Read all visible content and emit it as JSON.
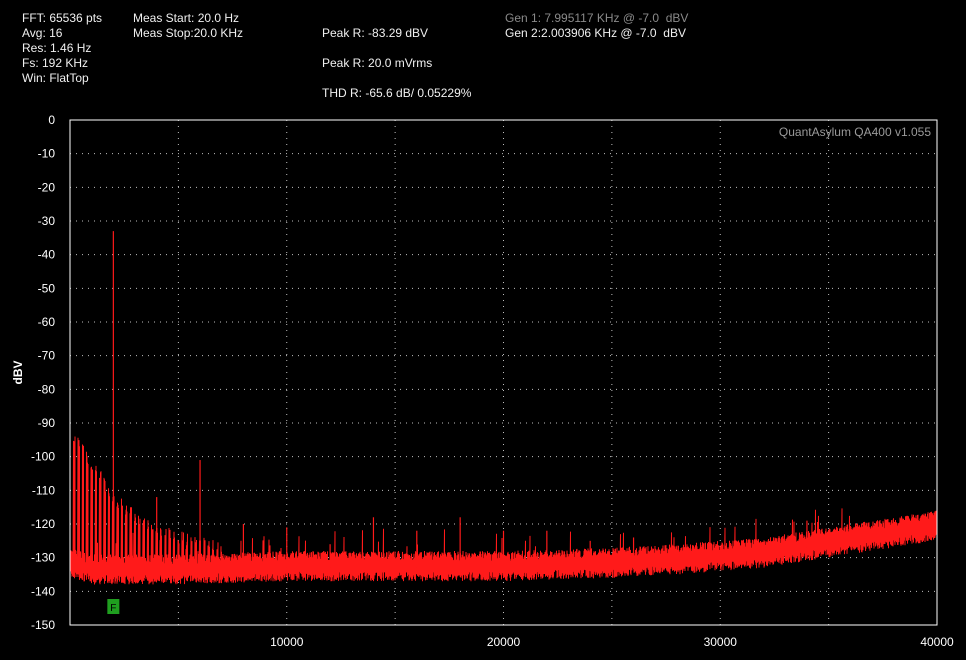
{
  "header": {
    "fft": "FFT: 65536 pts",
    "avg": "Avg: 16",
    "res": "Res: 1.46 Hz",
    "fs": "Fs: 192 KHz",
    "win": "Win: FlatTop",
    "meas_start": "Meas Start: 20.0 Hz",
    "meas_stop": "Meas Stop:20.0 KHz",
    "peak_dbv": "Peak R: -83.29 dBV",
    "peak_mvrms": "Peak R: 20.0 mVrms",
    "thd": "THD R: -65.6 dB/ 0.05229%",
    "gen1": "Gen 1: 7.995117 KHz @ -7.0  dBV",
    "gen2": "Gen 2:2.003906 KHz @ -7.0  dBV"
  },
  "watermark": "QuantAsylum QA400 v1.055",
  "marker_label": "F",
  "colors": {
    "trace": "#ff1a1a",
    "background": "#000000",
    "grid": "#bfbfbf",
    "marker": "#1f9e1f",
    "frame": "#ffffff"
  },
  "chart_data": {
    "type": "line",
    "xlabel": "",
    "ylabel": "dBV",
    "xlim": [
      0,
      40000
    ],
    "ylim": [
      -150,
      0
    ],
    "x_ticks": [
      10000,
      20000,
      30000,
      40000
    ],
    "x_tick_labels": [
      "10000",
      "20000",
      "30000",
      "40000"
    ],
    "y_ticks": [
      0,
      -10,
      -20,
      -30,
      -40,
      -50,
      -60,
      -70,
      -80,
      -90,
      -100,
      -110,
      -120,
      -130,
      -140,
      -150
    ],
    "y_tick_labels": [
      "0",
      "-10",
      "-20",
      "-30",
      "-40",
      "-50",
      "-60",
      "-70",
      "-80",
      "-90",
      "-100",
      "-110",
      "-120",
      "-130",
      "-140",
      "-150"
    ],
    "grid": true,
    "marker_frequency": 2000,
    "noise_floor": {
      "x": [
        0,
        500,
        1000,
        2000,
        5000,
        10000,
        15000,
        20000,
        25000,
        28000,
        30000,
        32000,
        34000,
        36000,
        38000,
        40000
      ],
      "y": [
        -131,
        -132,
        -133,
        -133,
        -133,
        -132,
        -132,
        -132,
        -131,
        -130,
        -129,
        -128,
        -126,
        -124,
        -122,
        -120
      ]
    },
    "low_freq_comb": {
      "spacing": 200,
      "x_start": 100,
      "x_end": 7000,
      "envelope_x": [
        100,
        1000,
        2000,
        3000,
        4000,
        5000,
        7000
      ],
      "envelope_y": [
        -91,
        -100,
        -110,
        -116,
        -120,
        -122,
        -125
      ]
    },
    "peaks": [
      {
        "x": 2000,
        "y": -33
      },
      {
        "x": 4000,
        "y": -112
      },
      {
        "x": 6000,
        "y": -101
      },
      {
        "x": 8000,
        "y": -120
      },
      {
        "x": 10000,
        "y": -121
      },
      {
        "x": 12000,
        "y": -126
      },
      {
        "x": 14000,
        "y": -118
      },
      {
        "x": 16000,
        "y": -122
      },
      {
        "x": 18000,
        "y": -118
      },
      {
        "x": 20000,
        "y": -122
      },
      {
        "x": 22000,
        "y": -122
      },
      {
        "x": 24000,
        "y": -125
      },
      {
        "x": 26000,
        "y": -124
      },
      {
        "x": 28000,
        "y": -127
      },
      {
        "x": 30000,
        "y": -128
      },
      {
        "x": 32000,
        "y": -127
      },
      {
        "x": 34000,
        "y": -119
      },
      {
        "x": 36000,
        "y": -122
      }
    ]
  }
}
